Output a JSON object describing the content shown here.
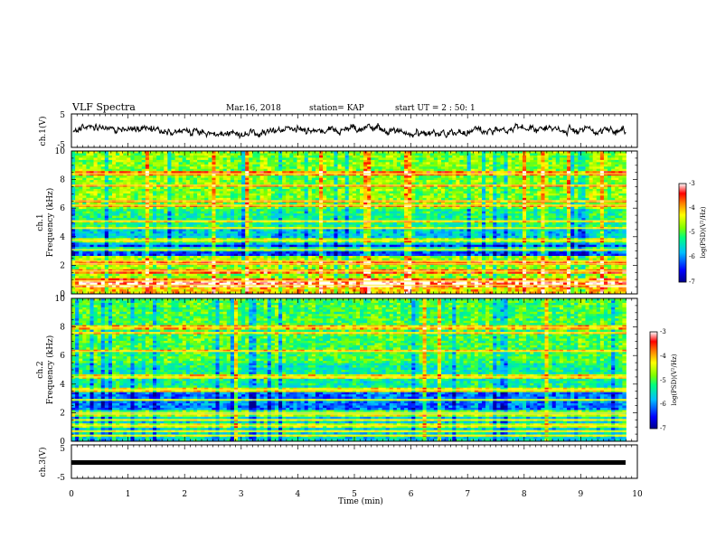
{
  "header": {
    "title": "VLF Spectra",
    "date": "Mar.16, 2018",
    "station": "station= KAP",
    "start_ut": "start UT =  2 : 50: 1"
  },
  "chart_data": [
    {
      "type": "line",
      "name": "ch1-waveform",
      "ylabel": "ch.1(V)",
      "ylim": [
        -5,
        5
      ],
      "yticks": [
        "5",
        "-5"
      ],
      "xlim": [
        0,
        10
      ]
    },
    {
      "type": "heatmap",
      "name": "ch1-spectrogram",
      "ylabel": "ch.1\nFrequency (kHz)",
      "ylabel_line1": "ch.1",
      "ylabel_line2": "Frequency (kHz)",
      "ylim": [
        0,
        10
      ],
      "yticks": [
        "0",
        "2",
        "4",
        "6",
        "8",
        "10"
      ],
      "xlim": [
        0,
        9.8
      ],
      "bands_khz": [
        0.6,
        0.9,
        1.6,
        2.1,
        2.3,
        3.1,
        3.75,
        4.6,
        5.1,
        6.2,
        6.5,
        7.6,
        8.4
      ],
      "colorbar": {
        "label": "log(PSD)(V²/Hz)",
        "range": [
          -7,
          -3
        ],
        "ticks": [
          "-3",
          "-4",
          "-5",
          "-6",
          "-7"
        ]
      }
    },
    {
      "type": "heatmap",
      "name": "ch2-spectrogram",
      "ylabel_line1": "ch.2",
      "ylabel_line2": "Frequency (kHz)",
      "ylim": [
        0,
        10
      ],
      "yticks": [
        "0",
        "2",
        "4",
        "6",
        "8",
        "10"
      ],
      "xlim": [
        0,
        9.8
      ],
      "bands_khz": [
        0.4,
        0.7,
        1.1,
        1.5,
        1.9,
        2.0,
        2.9,
        3.6,
        4.5,
        6.3,
        7.6,
        8.0
      ],
      "colorbar": {
        "label": "log(PSD)(V²/Hz)",
        "range": [
          -7,
          -3
        ],
        "ticks": [
          "-3",
          "-4",
          "-5",
          "-6",
          "-7"
        ]
      }
    },
    {
      "type": "line",
      "name": "ch3-waveform",
      "ylabel": "ch.3(V)",
      "ylim": [
        -5,
        5
      ],
      "yticks": [
        "5",
        "-5"
      ],
      "values_constant": -1.2,
      "xlim": [
        0,
        9.8
      ]
    }
  ],
  "xaxis": {
    "label": "Time (min)",
    "range": [
      0,
      10
    ],
    "ticks": [
      "0",
      "1",
      "2",
      "3",
      "4",
      "5",
      "6",
      "7",
      "8",
      "9",
      "10"
    ]
  },
  "colors": {
    "colormap": [
      "#00008b",
      "#0000ff",
      "#00bfff",
      "#00ff7f",
      "#7fff00",
      "#ffff00",
      "#ff7f00",
      "#ff0000",
      "#ffffff"
    ]
  }
}
